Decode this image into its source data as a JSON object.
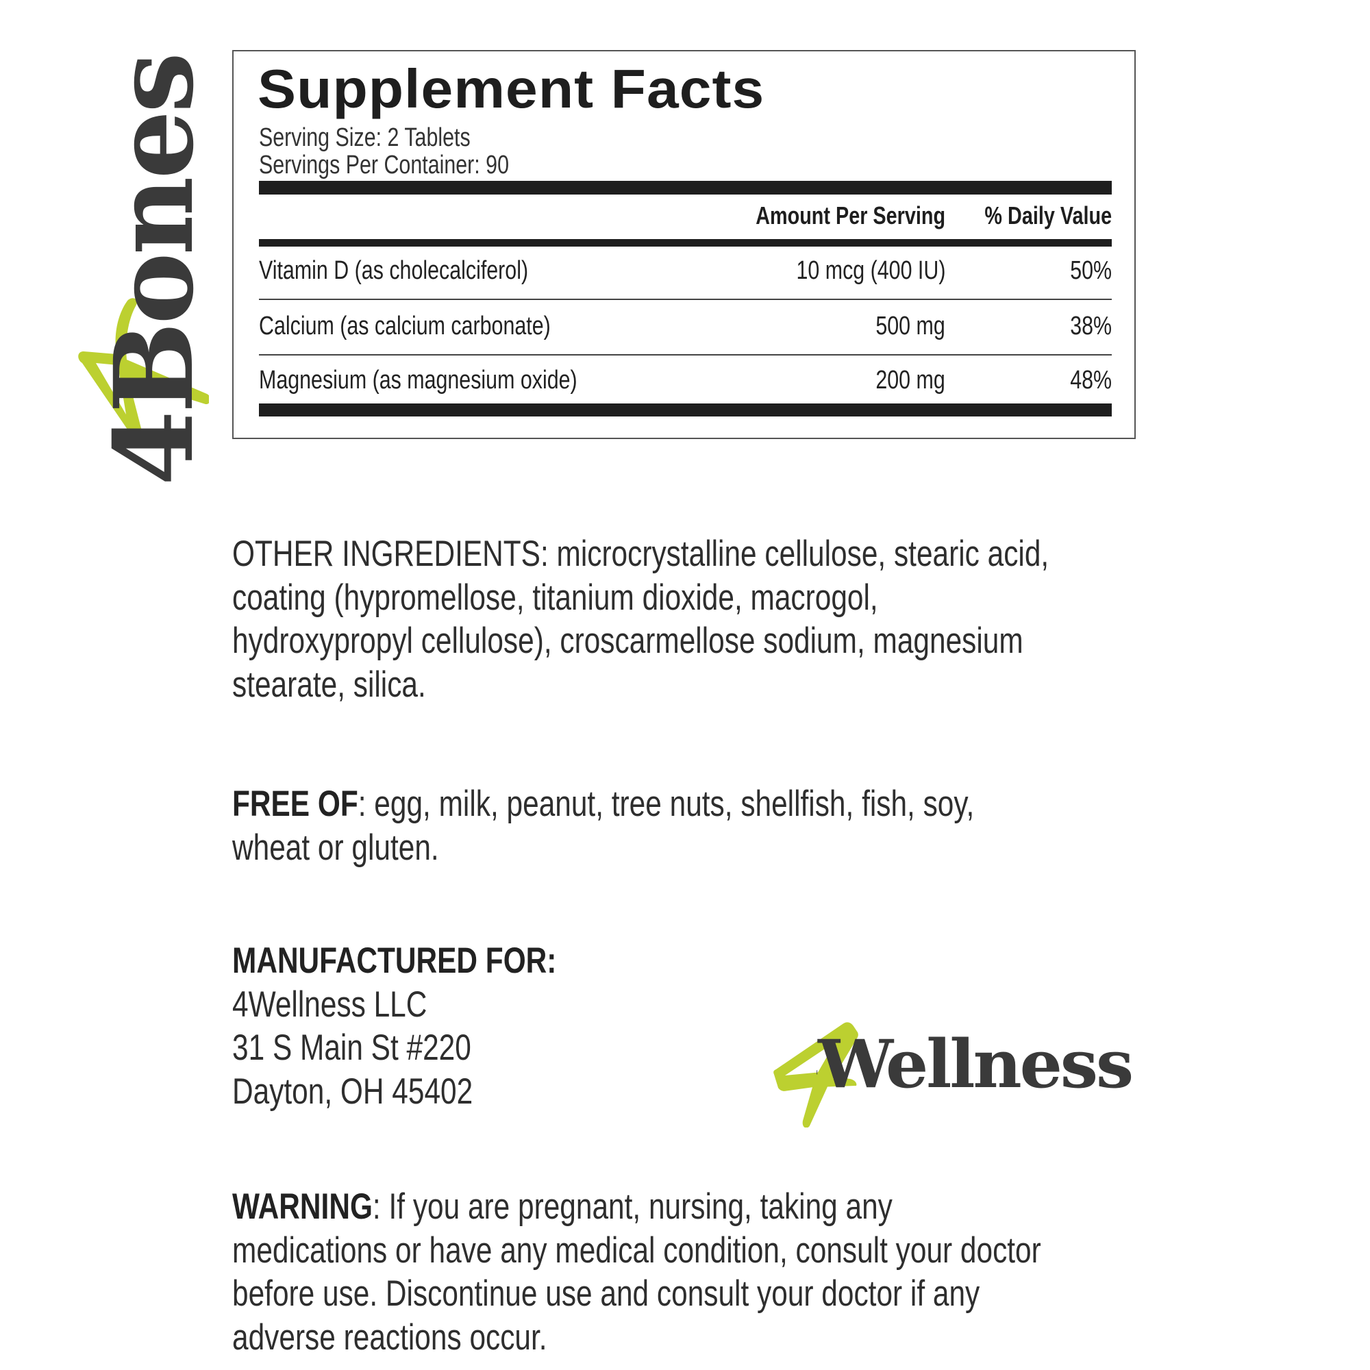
{
  "brand": {
    "product_logo": "4Bones",
    "company_logo": "4Wellness",
    "accent_color": "#bcd030",
    "dark_color": "#3a3a3a"
  },
  "facts": {
    "title": "Supplement Facts",
    "serving_size": "Serving Size: 2 Tablets",
    "servings_per_container": "Servings Per Container: 90",
    "header_amount": "Amount Per Serving",
    "header_dv": "% Daily Value",
    "rows": [
      {
        "name": "Vitamin D (as cholecalciferol)",
        "amount": "10 mcg (400 IU)",
        "dv": "50%"
      },
      {
        "name": "Calcium (as calcium carbonate)",
        "amount": "500 mg",
        "dv": "38%"
      },
      {
        "name": "Magnesium (as magnesium oxide)",
        "amount": "200 mg",
        "dv": "48%"
      }
    ]
  },
  "other_ingredients": {
    "lines": [
      "OTHER INGREDIENTS: microcrystalline cellulose, stearic acid,",
      "coating (hypromellose, titanium dioxide, macrogol,",
      "hydroxypropyl cellulose), croscarmellose sodium, magnesium",
      "stearate, silica."
    ]
  },
  "free_of": {
    "label": "FREE OF",
    "line1": ": egg, milk, peanut, tree nuts, shellfish, fish, soy,",
    "line2": "wheat or gluten."
  },
  "manufacturer": {
    "label": "MANUFACTURED FOR:",
    "name": "4Wellness LLC",
    "street": "31 S Main St #220",
    "city": "Dayton, OH 45402"
  },
  "warning": {
    "label": "WARNING",
    "line1": ": If you are pregnant, nursing, taking any",
    "line2": "medications or have any medical condition, consult your doctor",
    "line3": "before use. Discontinue use and consult your doctor if any",
    "line4": "adverse reactions occur."
  }
}
